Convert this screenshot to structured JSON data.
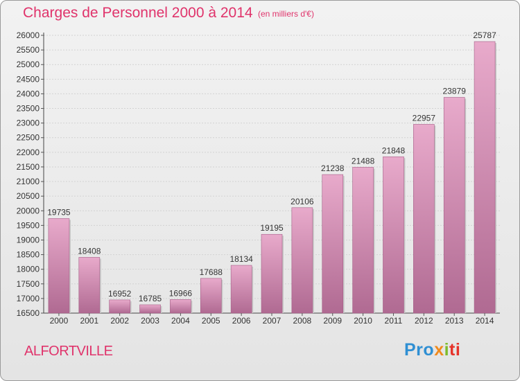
{
  "header": {
    "title": "Charges de Personnel 2000 à 2014",
    "subtitle": "(en milliers d'€)"
  },
  "footer": {
    "place": "ALFORTVILLE",
    "logo": {
      "p1": "Pro",
      "p2": "x",
      "p3": "i",
      "p4": "ti"
    }
  },
  "colors": {
    "bar_light": "#e8aacb",
    "bar_dark": "#b06a92",
    "title": "#e0336b",
    "grid": "#d2d2d2"
  },
  "chart_data": {
    "type": "bar",
    "title": "Charges de Personnel 2000 à 2014",
    "subtitle": "(en milliers d'€)",
    "xlabel": "",
    "ylabel": "",
    "ylim": [
      16500,
      26000
    ],
    "ytick_step": 500,
    "grid": true,
    "categories": [
      "2000",
      "2001",
      "2002",
      "2003",
      "2004",
      "2005",
      "2006",
      "2007",
      "2008",
      "2009",
      "2010",
      "2011",
      "2012",
      "2013",
      "2014"
    ],
    "values": [
      19735,
      18408,
      16952,
      16785,
      16966,
      17688,
      18134,
      19195,
      20106,
      21238,
      21488,
      21848,
      22957,
      23879,
      25787
    ]
  }
}
